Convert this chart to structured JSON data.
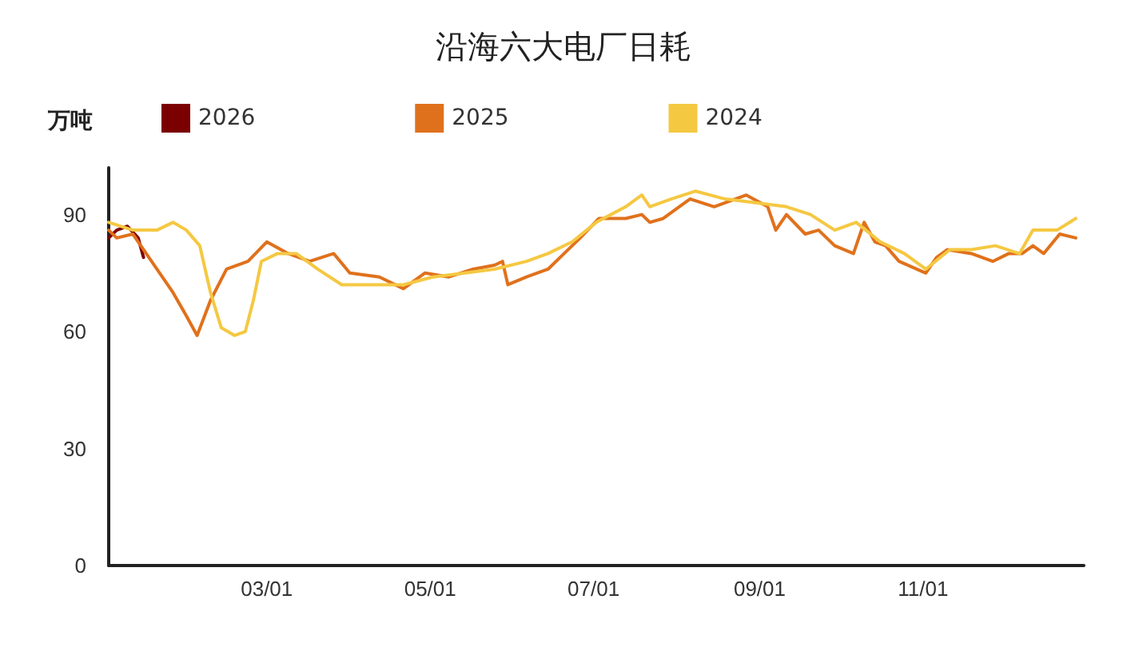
{
  "chart_data": {
    "type": "line",
    "title": "沿海六大电厂日耗",
    "ylabel": "万吨",
    "legend": "top left",
    "grid": false,
    "marker": "none",
    "line_style": "solid",
    "xlim": [
      "--01-01",
      "--12-31"
    ],
    "xticks": [
      {
        "value": "--03-01",
        "label": "03/01"
      },
      {
        "value": "--05-01",
        "label": "05/01"
      },
      {
        "value": "--07-01",
        "label": "07/01"
      },
      {
        "value": "--09-01",
        "label": "09/01"
      },
      {
        "value": "--11-01",
        "label": "11/01"
      }
    ],
    "ylim": [
      0,
      102
    ],
    "yticks": [
      0,
      30,
      60,
      90
    ],
    "series": [
      {
        "name": "2026",
        "color": "#7b0000",
        "x": [
          "--01-01",
          "--01-04",
          "--01-08",
          "--01-12",
          "--01-14"
        ],
        "values": [
          84,
          86,
          87,
          84,
          79
        ]
      },
      {
        "name": "2025",
        "color": "#e0711c",
        "x": [
          "--01-01",
          "--01-04",
          "--01-10",
          "--01-13",
          "--01-19",
          "--01-25",
          "--01-30",
          "--02-03",
          "--02-08",
          "--02-14",
          "--02-22",
          "--03-01",
          "--03-09",
          "--03-17",
          "--03-26",
          "--04-01",
          "--04-12",
          "--04-21",
          "--04-29",
          "--05-08",
          "--05-17",
          "--05-25",
          "--05-28",
          "--05-30",
          "--06-06",
          "--06-14",
          "--06-20",
          "--06-26",
          "--07-03",
          "--07-13",
          "--07-19",
          "--07-22",
          "--07-27",
          "--08-06",
          "--08-15",
          "--08-27",
          "--09-04",
          "--09-07",
          "--09-11",
          "--09-18",
          "--09-23",
          "--09-29",
          "--10-06",
          "--10-10",
          "--10-14",
          "--10-18",
          "--10-23",
          "--11-02",
          "--11-06",
          "--11-10",
          "--11-19",
          "--11-27",
          "--12-03",
          "--12-08",
          "--12-12",
          "--12-16",
          "--12-22",
          "--12-28"
        ],
        "values": [
          86,
          84,
          85,
          82,
          76,
          70,
          64,
          59,
          68,
          76,
          78,
          83,
          80,
          78,
          80,
          75,
          74,
          71,
          75,
          74,
          76,
          77,
          78,
          72,
          74,
          76,
          80,
          84,
          89,
          89,
          90,
          88,
          89,
          94,
          92,
          95,
          92,
          86,
          90,
          85,
          86,
          82,
          80,
          88,
          83,
          82,
          78,
          75,
          79,
          81,
          80,
          78,
          80,
          80,
          82,
          80,
          85,
          84
        ]
      },
      {
        "name": "2024",
        "color": "#f5c842",
        "x": [
          "--01-01",
          "--01-10",
          "--01-19",
          "--01-25",
          "--01-30",
          "--02-04",
          "--02-08",
          "--02-12",
          "--02-17",
          "--02-21",
          "--02-24",
          "--02-27",
          "--03-05",
          "--03-12",
          "--03-20",
          "--03-29",
          "--04-09",
          "--04-21",
          "--05-02",
          "--05-14",
          "--05-25",
          "--06-06",
          "--06-14",
          "--06-23",
          "--07-02",
          "--07-13",
          "--07-19",
          "--07-22",
          "--07-30",
          "--08-08",
          "--08-19",
          "--08-31",
          "--09-11",
          "--09-20",
          "--09-29",
          "--10-07",
          "--10-16",
          "--10-25",
          "--11-02",
          "--11-11",
          "--11-19",
          "--11-28",
          "--12-07",
          "--12-12",
          "--12-21",
          "--12-28"
        ],
        "values": [
          88,
          86,
          86,
          88,
          86,
          82,
          70,
          61,
          59,
          60,
          68,
          78,
          80,
          80,
          76,
          72,
          72,
          72,
          74,
          75,
          76,
          78,
          80,
          83,
          88,
          92,
          95,
          92,
          94,
          96,
          94,
          93,
          92,
          90,
          86,
          88,
          83,
          80,
          76,
          81,
          81,
          82,
          80,
          86,
          86,
          89
        ]
      }
    ]
  }
}
